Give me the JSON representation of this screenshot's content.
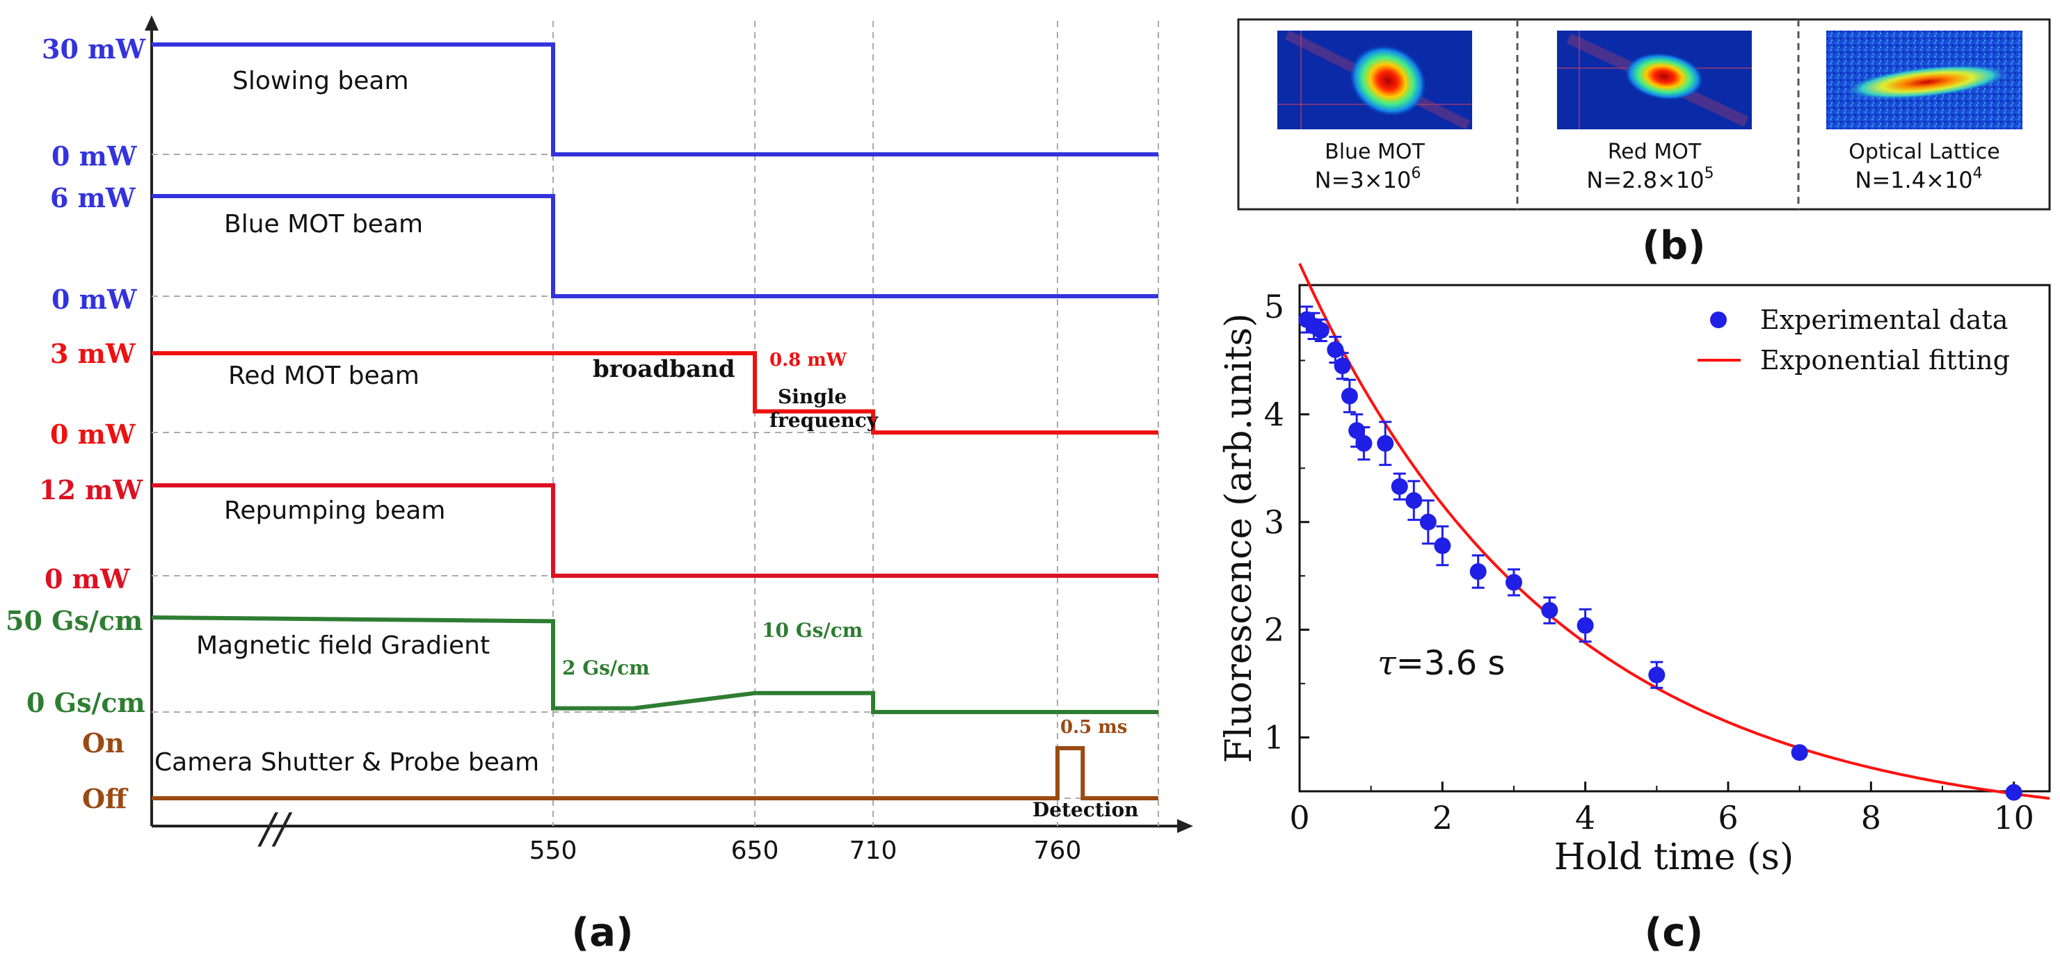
{
  "colors": {
    "blue": "#3333dd",
    "red": "#ee1111",
    "dred": "#dd1122",
    "green": "#2e7d32",
    "brown": "#9a4a12",
    "grid": "#aaaaaa",
    "axis": "#222222"
  },
  "panel_a": {
    "label": "(a)",
    "break_mark": "//",
    "time_ticks": [
      "550",
      "650",
      "710",
      "760"
    ],
    "channels": [
      {
        "name": "Slowing beam",
        "high": "30 mW",
        "low": "0 mW",
        "color": "blue"
      },
      {
        "name": "Blue MOT beam",
        "high": "6 mW",
        "low": "0 mW",
        "color": "blue"
      },
      {
        "name": "Red MOT beam",
        "high": "3 mW",
        "low": "0 mW",
        "color": "red"
      },
      {
        "name": "Repumping beam",
        "high": "12 mW",
        "low": "0 mW",
        "color": "dred"
      },
      {
        "name": "Magnetic field Gradient",
        "high": "50 Gs/cm",
        "low": "0 Gs/cm",
        "color": "green"
      },
      {
        "name": "Camera Shutter & Probe beam",
        "high": "On",
        "low": "Off",
        "color": "brown"
      }
    ],
    "annotations": {
      "broadband": "broadband",
      "red_mid_power": "0.8 mW",
      "single_frequency_1": "Single",
      "single_frequency_2": "frequency",
      "gradient_low": "2 Gs/cm",
      "gradient_mid": "10 Gs/cm",
      "pulse_width": "0.5 ms",
      "detection": "Detection"
    }
  },
  "panel_b": {
    "label": "(b)",
    "images": [
      {
        "title": "Blue MOT",
        "count": "N=3×10",
        "exp": "6"
      },
      {
        "title": "Red MOT",
        "count": "N=2.8×10",
        "exp": "5"
      },
      {
        "title": "Optical Lattice",
        "count": "N=1.4×10",
        "exp": "4"
      }
    ]
  },
  "panel_c": {
    "label": "(c)",
    "tau_symbol": "τ",
    "tau_value": "=3.6 s",
    "legend_data": "Experimental data",
    "legend_fit": "Exponential fitting"
  },
  "chart_data": [
    {
      "type": "line",
      "title": "",
      "xlabel": "",
      "ylabel": "",
      "x_tick_labels": [
        "550",
        "650",
        "710",
        "760"
      ],
      "series": [
        {
          "name": "Slowing beam",
          "high_label": "30 mW",
          "low_label": "0 mW",
          "x": [
            0,
            550,
            550,
            800
          ],
          "y": [
            1,
            1,
            0,
            0
          ]
        },
        {
          "name": "Blue MOT beam",
          "high_label": "6 mW",
          "low_label": "0 mW",
          "x": [
            0,
            550,
            550,
            800
          ],
          "y": [
            1,
            1,
            0,
            0
          ]
        },
        {
          "name": "Red MOT beam",
          "high_label": "3 mW",
          "low_label": "0 mW",
          "x": [
            0,
            650,
            650,
            710,
            710,
            800
          ],
          "y": [
            3,
            3,
            0.8,
            0.8,
            0,
            0
          ]
        },
        {
          "name": "Repumping beam",
          "high_label": "12 mW",
          "low_label": "0 mW",
          "x": [
            0,
            550,
            550,
            800
          ],
          "y": [
            1,
            1,
            0,
            0
          ]
        },
        {
          "name": "Magnetic field Gradient",
          "high_label": "50 Gs/cm",
          "low_label": "0 Gs/cm",
          "x": [
            0,
            550,
            550,
            590,
            650,
            710,
            710,
            800
          ],
          "y": [
            50,
            48,
            2,
            2,
            10,
            10,
            0,
            0
          ]
        },
        {
          "name": "Camera Shutter & Probe beam",
          "high_label": "On",
          "low_label": "Off",
          "x": [
            0,
            760,
            760,
            770,
            770,
            800
          ],
          "y": [
            0,
            0,
            1,
            1,
            0,
            0
          ]
        }
      ]
    },
    {
      "type": "scatter",
      "title": "",
      "xlabel": "Hold time (s)",
      "ylabel": "Fluorescence (arb.units)",
      "xlim": [
        0,
        10.5
      ],
      "ylim": [
        0.5,
        5.2
      ],
      "x_ticks": [
        0,
        2,
        4,
        6,
        8,
        10
      ],
      "y_ticks": [
        1,
        2,
        3,
        4,
        5
      ],
      "series": [
        {
          "name": "Experimental data",
          "x": [
            0.1,
            0.2,
            0.3,
            0.5,
            0.6,
            0.7,
            0.8,
            0.9,
            1.2,
            1.4,
            1.6,
            1.8,
            2.0,
            2.5,
            3.0,
            3.5,
            4.0,
            5.0,
            7.0,
            10.0
          ],
          "y": [
            4.88,
            4.82,
            4.78,
            4.6,
            4.45,
            4.17,
            3.85,
            3.73,
            3.73,
            3.33,
            3.2,
            3.0,
            2.78,
            2.54,
            2.44,
            2.18,
            2.04,
            1.58,
            0.86,
            0.49
          ],
          "err": [
            0.12,
            0.12,
            0.1,
            0.12,
            0.12,
            0.15,
            0.15,
            0.15,
            0.2,
            0.12,
            0.18,
            0.2,
            0.18,
            0.15,
            0.12,
            0.12,
            0.15,
            0.12,
            0.04,
            0.04
          ]
        },
        {
          "name": "Exponential fitting",
          "model": "y = A*exp(-x/tau) + C",
          "A": 5.25,
          "tau": 3.6,
          "C": 0.15
        }
      ]
    }
  ]
}
